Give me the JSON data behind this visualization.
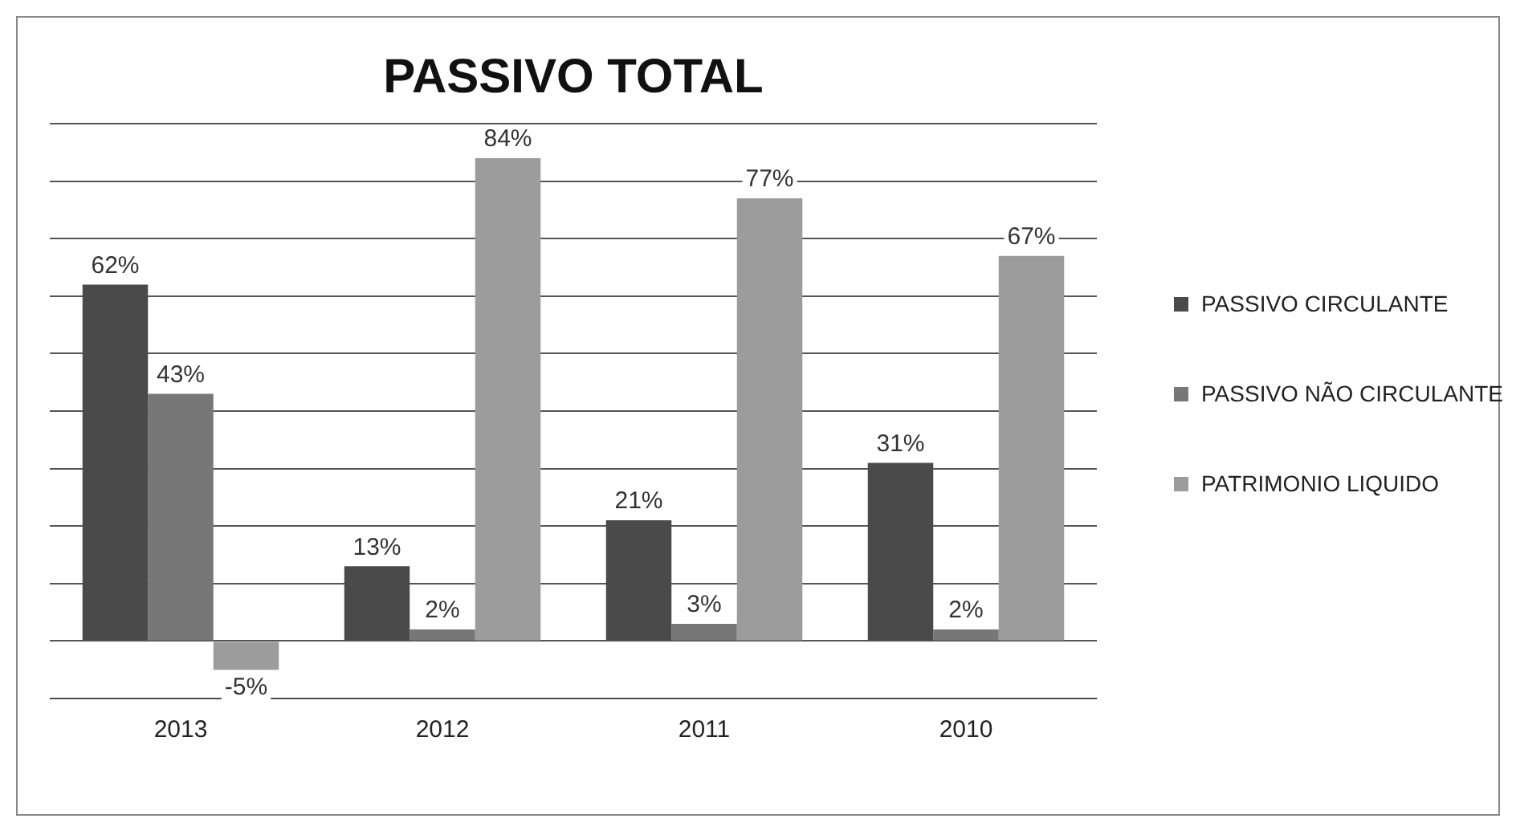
{
  "chart_data": {
    "type": "bar",
    "title": "PASSIVO TOTAL",
    "categories": [
      "2013",
      "2012",
      "2011",
      "2010"
    ],
    "series": [
      {
        "name": "PASSIVO CIRCULANTE",
        "color": "#4a4a4a",
        "values": [
          62,
          13,
          21,
          31
        ],
        "value_labels": [
          "62%",
          "13%",
          "21%",
          "31%"
        ]
      },
      {
        "name": "PASSIVO NÃO CIRCULANTE",
        "color": "#777777",
        "values": [
          43,
          2,
          3,
          2
        ],
        "value_labels": [
          "43%",
          "2%",
          "3%",
          "2%"
        ]
      },
      {
        "name": "PATRIMONIO LIQUIDO",
        "color": "#9c9c9c",
        "values": [
          -5,
          84,
          77,
          67
        ],
        "value_labels": [
          "-5%",
          "84%",
          "77%",
          "67%"
        ]
      }
    ],
    "grid": "y",
    "legend": "right"
  }
}
